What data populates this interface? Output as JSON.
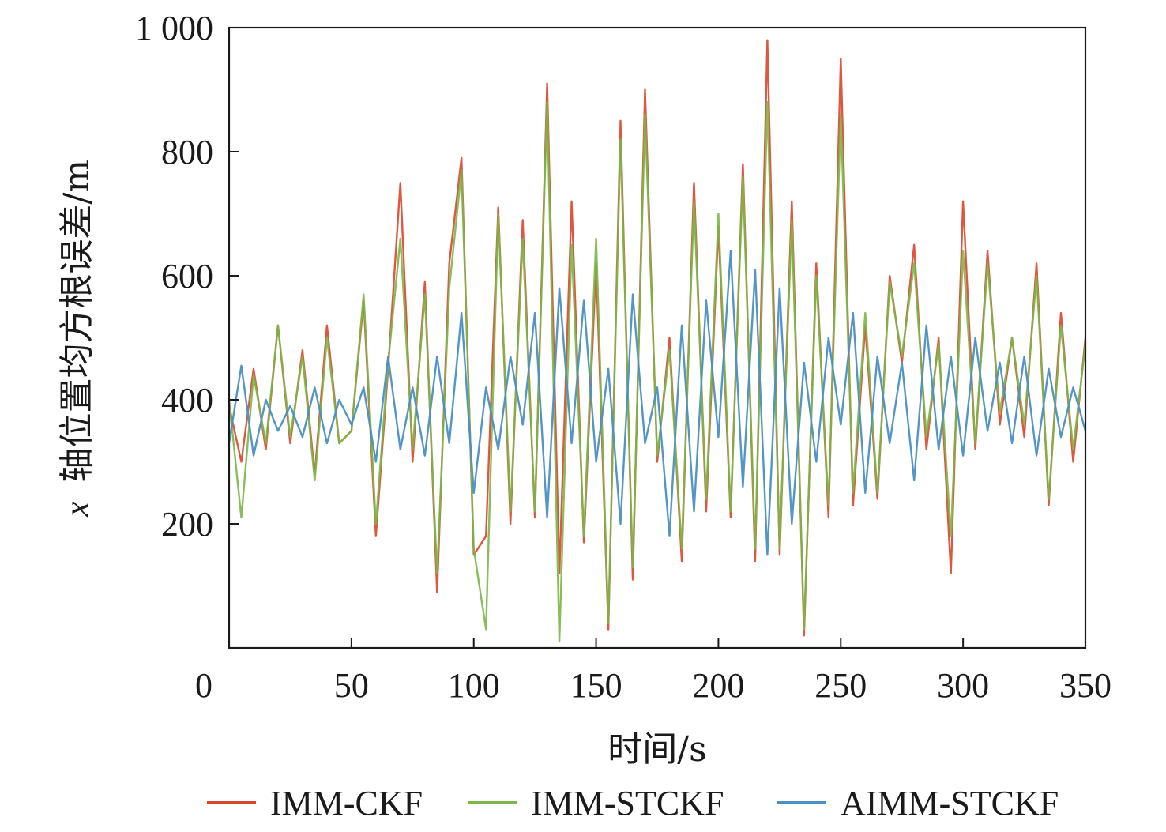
{
  "chart_data": {
    "type": "line",
    "title": "",
    "xlabel": "时间/s",
    "ylabel_prefix": "x",
    "ylabel": "轴位置均方根误差/m",
    "xlim": [
      0,
      350
    ],
    "ylim": [
      0,
      1000
    ],
    "x_ticks": [
      0,
      50,
      100,
      150,
      200,
      250,
      300,
      350
    ],
    "y_ticks": [
      200,
      400,
      600,
      800,
      1000
    ],
    "x_tick_labels": [
      "0",
      "50",
      "100",
      "150",
      "200",
      "250",
      "300",
      "350"
    ],
    "y_tick_labels": [
      "200",
      "400",
      "600",
      "800",
      "1 000"
    ],
    "grid": false,
    "legend_position": "bottom",
    "series": [
      {
        "name": "IMM-CKF",
        "color": "#d9462b",
        "x": [
          0,
          5,
          10,
          15,
          20,
          25,
          30,
          35,
          40,
          45,
          50,
          55,
          60,
          65,
          70,
          75,
          80,
          85,
          90,
          95,
          100,
          105,
          110,
          115,
          120,
          125,
          130,
          135,
          140,
          145,
          150,
          155,
          160,
          165,
          170,
          175,
          180,
          185,
          190,
          195,
          200,
          205,
          210,
          215,
          220,
          225,
          230,
          235,
          240,
          245,
          250,
          255,
          260,
          265,
          270,
          275,
          280,
          285,
          290,
          295,
          300,
          305,
          310,
          315,
          320,
          325,
          330,
          335,
          340,
          345,
          350
        ],
        "y": [
          390,
          300,
          450,
          320,
          520,
          330,
          480,
          280,
          520,
          330,
          350,
          560,
          180,
          450,
          750,
          300,
          590,
          90,
          620,
          790,
          150,
          180,
          710,
          200,
          690,
          210,
          910,
          120,
          720,
          170,
          620,
          30,
          850,
          110,
          900,
          300,
          500,
          140,
          750,
          220,
          680,
          210,
          780,
          140,
          980,
          150,
          720,
          20,
          620,
          210,
          950,
          230,
          520,
          240,
          600,
          460,
          650,
          320,
          500,
          120,
          720,
          320,
          640,
          360,
          500,
          340,
          620,
          230,
          540,
          300,
          500
        ]
      },
      {
        "name": "IMM-STCKF",
        "color": "#7ab648",
        "x": [
          0,
          5,
          10,
          15,
          20,
          25,
          30,
          35,
          40,
          45,
          50,
          55,
          60,
          65,
          70,
          75,
          80,
          85,
          90,
          95,
          100,
          105,
          110,
          115,
          120,
          125,
          130,
          135,
          140,
          145,
          150,
          155,
          160,
          165,
          170,
          175,
          180,
          185,
          190,
          195,
          200,
          205,
          210,
          215,
          220,
          225,
          230,
          235,
          240,
          245,
          250,
          255,
          260,
          265,
          270,
          275,
          280,
          285,
          290,
          295,
          300,
          305,
          310,
          315,
          320,
          325,
          330,
          335,
          340,
          345,
          350
        ],
        "y": [
          400,
          210,
          440,
          330,
          520,
          340,
          470,
          270,
          500,
          330,
          350,
          570,
          200,
          460,
          660,
          320,
          570,
          120,
          580,
          770,
          160,
          30,
          700,
          220,
          660,
          220,
          880,
          10,
          650,
          180,
          660,
          40,
          820,
          130,
          860,
          310,
          480,
          160,
          720,
          240,
          700,
          220,
          760,
          160,
          880,
          160,
          690,
          30,
          600,
          230,
          860,
          250,
          540,
          250,
          590,
          470,
          620,
          340,
          490,
          180,
          640,
          330,
          620,
          380,
          500,
          360,
          600,
          240,
          520,
          320,
          490
        ]
      },
      {
        "name": "AIMM-STCKF",
        "color": "#4a90c2",
        "x": [
          0,
          5,
          10,
          15,
          20,
          25,
          30,
          35,
          40,
          45,
          50,
          55,
          60,
          65,
          70,
          75,
          80,
          85,
          90,
          95,
          100,
          105,
          110,
          115,
          120,
          125,
          130,
          135,
          140,
          145,
          150,
          155,
          160,
          165,
          170,
          175,
          180,
          185,
          190,
          195,
          200,
          205,
          210,
          215,
          220,
          225,
          230,
          235,
          240,
          245,
          250,
          255,
          260,
          265,
          270,
          275,
          280,
          285,
          290,
          295,
          300,
          305,
          310,
          315,
          320,
          325,
          330,
          335,
          340,
          345,
          350
        ],
        "y": [
          330,
          455,
          310,
          400,
          350,
          390,
          340,
          420,
          330,
          400,
          360,
          420,
          300,
          470,
          320,
          420,
          310,
          470,
          330,
          540,
          250,
          420,
          320,
          470,
          360,
          540,
          210,
          580,
          330,
          560,
          300,
          450,
          200,
          570,
          330,
          420,
          180,
          520,
          220,
          560,
          340,
          640,
          260,
          610,
          150,
          580,
          200,
          460,
          300,
          500,
          360,
          540,
          250,
          470,
          330,
          460,
          270,
          520,
          320,
          470,
          310,
          500,
          350,
          460,
          330,
          470,
          310,
          450,
          340,
          420,
          350
        ]
      }
    ]
  }
}
